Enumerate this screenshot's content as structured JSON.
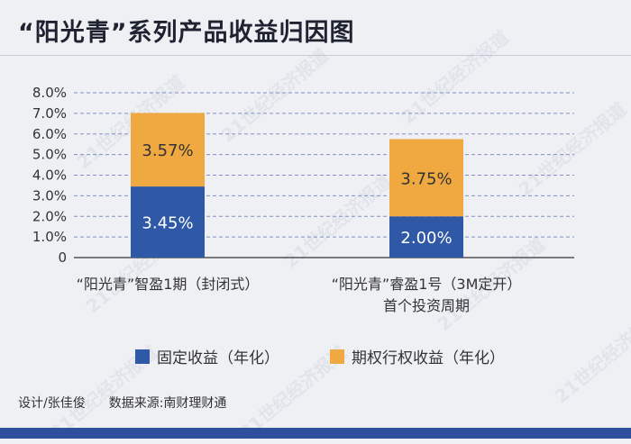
{
  "title": "“阳光青”系列产品收益归因图",
  "watermark": "21世纪经济报道",
  "credits": {
    "designer": "设计/张佳俊",
    "source": "数据来源:南财理财通"
  },
  "colors": {
    "fixed": "#2f58a6",
    "option": "#f0a941",
    "background": "#eef0f4",
    "grid": "#7f8fc6",
    "bottom_bar": "#2d4f9d"
  },
  "chart_data": {
    "type": "bar",
    "stacked": true,
    "title": "",
    "xlabel": "",
    "ylabel": "",
    "ylim": [
      0,
      8.0
    ],
    "y_ticks": [
      "8.0%",
      "7.0%",
      "6.0%",
      "5.0%",
      "4.0%",
      "3.0%",
      "2.0%",
      "1.0%",
      "0"
    ],
    "grid": true,
    "legend_position": "bottom",
    "categories": [
      [
        "“阳光青”智盈1期（封闭式）"
      ],
      [
        "“阳光青”睿盈1号（3M定开）",
        "首个投资周期"
      ]
    ],
    "series": [
      {
        "name": "固定收益（年化）",
        "values": [
          3.45,
          2.0
        ],
        "labels": [
          "3.45%",
          "2.00%"
        ]
      },
      {
        "name": "期权行权收益（年化）",
        "values": [
          3.57,
          3.75
        ],
        "labels": [
          "3.57%",
          "3.75%"
        ]
      }
    ]
  }
}
